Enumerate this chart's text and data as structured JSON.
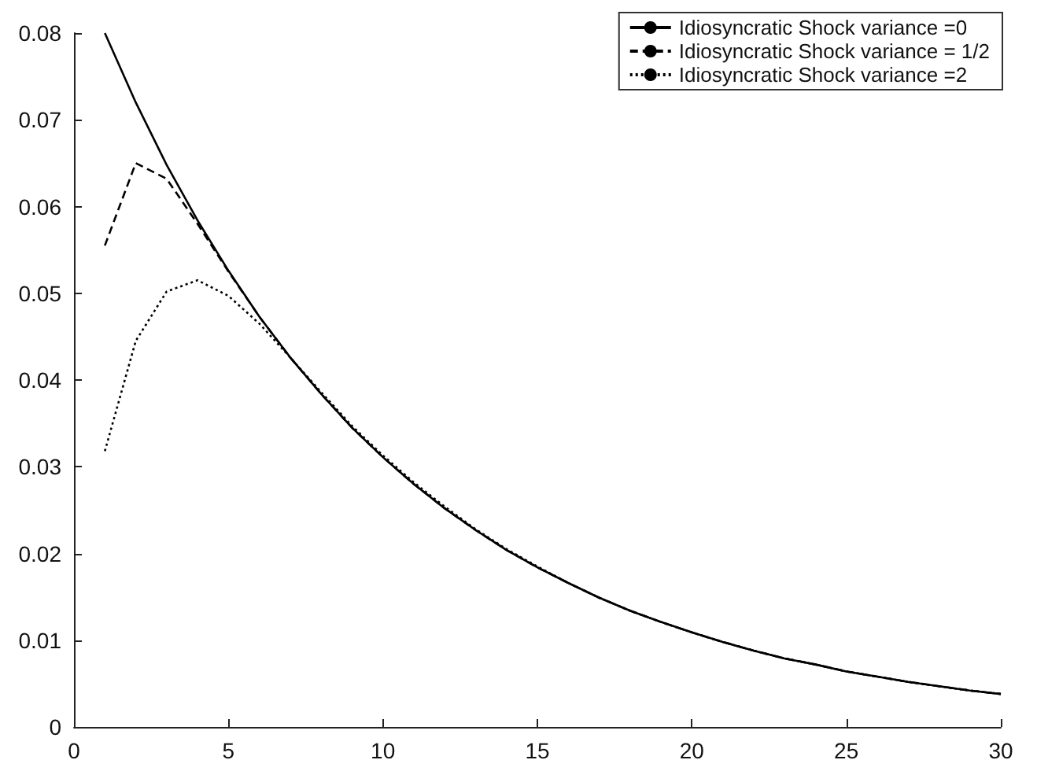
{
  "chart_data": {
    "type": "line",
    "x": [
      1,
      2,
      3,
      4,
      5,
      6,
      7,
      8,
      9,
      10,
      11,
      12,
      13,
      14,
      15,
      16,
      17,
      18,
      19,
      20,
      21,
      22,
      23,
      24,
      25,
      26,
      27,
      28,
      29,
      30
    ],
    "series": [
      {
        "name": "Idiosyncratic Shock variance =0",
        "color": "#000000",
        "line_style": "solid",
        "values": [
          0.08,
          0.072,
          0.0648,
          0.0584,
          0.0526,
          0.0473,
          0.0426,
          0.0384,
          0.0345,
          0.0311,
          0.028,
          0.0252,
          0.0227,
          0.0204,
          0.0184,
          0.0166,
          0.0149,
          0.0134,
          0.0121,
          0.0109,
          0.0098,
          0.0088,
          0.0079,
          0.0072,
          0.0064,
          0.0058,
          0.0052,
          0.0047,
          0.0042,
          0.0038
        ]
      },
      {
        "name": "Idiosyncratic Shock variance = 1/2",
        "color": "#000000",
        "line_style": "dashed",
        "values": [
          0.0555,
          0.065,
          0.0632,
          0.058,
          0.0525,
          0.0473,
          0.0426,
          0.0384,
          0.0345,
          0.0311,
          0.028,
          0.0252,
          0.0227,
          0.0204,
          0.0184,
          0.0166,
          0.0149,
          0.0134,
          0.0121,
          0.0109,
          0.0098,
          0.0088,
          0.0079,
          0.0072,
          0.0064,
          0.0058,
          0.0052,
          0.0047,
          0.0042,
          0.0038
        ]
      },
      {
        "name": "Idiosyncratic Shock variance =2",
        "color": "#000000",
        "line_style": "dotted",
        "values": [
          0.0318,
          0.0445,
          0.0502,
          0.0515,
          0.0497,
          0.0465,
          0.0426,
          0.0386,
          0.0347,
          0.0313,
          0.0282,
          0.0254,
          0.0228,
          0.0205,
          0.0185,
          0.0166,
          0.0149,
          0.0134,
          0.0121,
          0.0109,
          0.0098,
          0.0088,
          0.0079,
          0.0072,
          0.0064,
          0.0058,
          0.0052,
          0.0047,
          0.0042,
          0.0038
        ]
      }
    ],
    "xlim": [
      0,
      30
    ],
    "xticks": [
      0,
      5,
      10,
      15,
      20,
      25,
      30
    ],
    "ylim": [
      0,
      0.08
    ],
    "yticks": [
      0,
      0.01,
      0.02,
      0.03,
      0.04,
      0.05,
      0.06,
      0.07,
      0.08
    ],
    "grid": false,
    "legend": "top right",
    "marker": "none"
  }
}
